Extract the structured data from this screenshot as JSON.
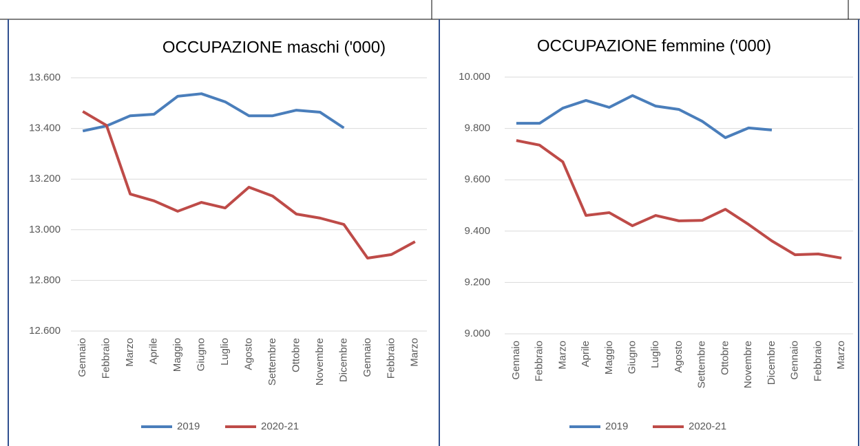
{
  "chart_data": [
    {
      "type": "line",
      "title": "OCCUPAZIONE maschi ('000)",
      "categories": [
        "Gennaio",
        "Febbraio",
        "Marzo",
        "Aprile",
        "Maggio",
        "Giugno",
        "Luglio",
        "Agosto",
        "Settembre",
        "Ottobre",
        "Novembre",
        "Dicembre",
        "Gennaio",
        "Febbraio",
        "Marzo"
      ],
      "series": [
        {
          "name": "2019",
          "color": "#4a7ebb",
          "values": [
            13390,
            13410,
            13450,
            13456,
            13527,
            13537,
            13505,
            13450,
            13450,
            13472,
            13464,
            13402,
            null,
            null,
            null
          ]
        },
        {
          "name": "2020-21",
          "color": "#be4b48",
          "values": [
            13467,
            13412,
            13141,
            13114,
            13073,
            13108,
            13086,
            13168,
            13133,
            13062,
            13046,
            13021,
            12888,
            12902,
            12953
          ]
        }
      ],
      "ylim": [
        12600,
        13600
      ],
      "yticks": [
        {
          "value": 12600,
          "label": "12.600"
        },
        {
          "value": 12800,
          "label": "12.800"
        },
        {
          "value": 13000,
          "label": "13.000"
        },
        {
          "value": 13200,
          "label": "13.200"
        },
        {
          "value": 13400,
          "label": "13.400"
        },
        {
          "value": 13600,
          "label": "13.600"
        }
      ],
      "grid": true,
      "legend": "bottom"
    },
    {
      "type": "line",
      "title": "OCCUPAZIONE femmine ('000)",
      "categories": [
        "Gennaio",
        "Febbraio",
        "Marzo",
        "Aprile",
        "Maggio",
        "Giugno",
        "Luglio",
        "Agosto",
        "Settembre",
        "Ottobre",
        "Novembre",
        "Dicembre",
        "Gennaio",
        "Febbraio",
        "Marzo"
      ],
      "series": [
        {
          "name": "2019",
          "color": "#4a7ebb",
          "values": [
            9820,
            9820,
            9879,
            9909,
            9882,
            9928,
            9887,
            9874,
            9828,
            9764,
            9802,
            9794,
            null,
            null,
            null
          ]
        },
        {
          "name": "2020-21",
          "color": "#be4b48",
          "values": [
            9753,
            9735,
            9670,
            9461,
            9472,
            9421,
            9461,
            9440,
            9442,
            9485,
            9426,
            9362,
            9308,
            9311,
            9295
          ]
        }
      ],
      "ylim": [
        9000,
        10000
      ],
      "yticks": [
        {
          "value": 9000,
          "label": "9.000"
        },
        {
          "value": 9200,
          "label": "9.200"
        },
        {
          "value": 9400,
          "label": "9.400"
        },
        {
          "value": 9600,
          "label": "9.600"
        },
        {
          "value": 9800,
          "label": "9.800"
        },
        {
          "value": 10000,
          "label": "10.000"
        }
      ],
      "grid": true,
      "legend": "bottom"
    }
  ]
}
